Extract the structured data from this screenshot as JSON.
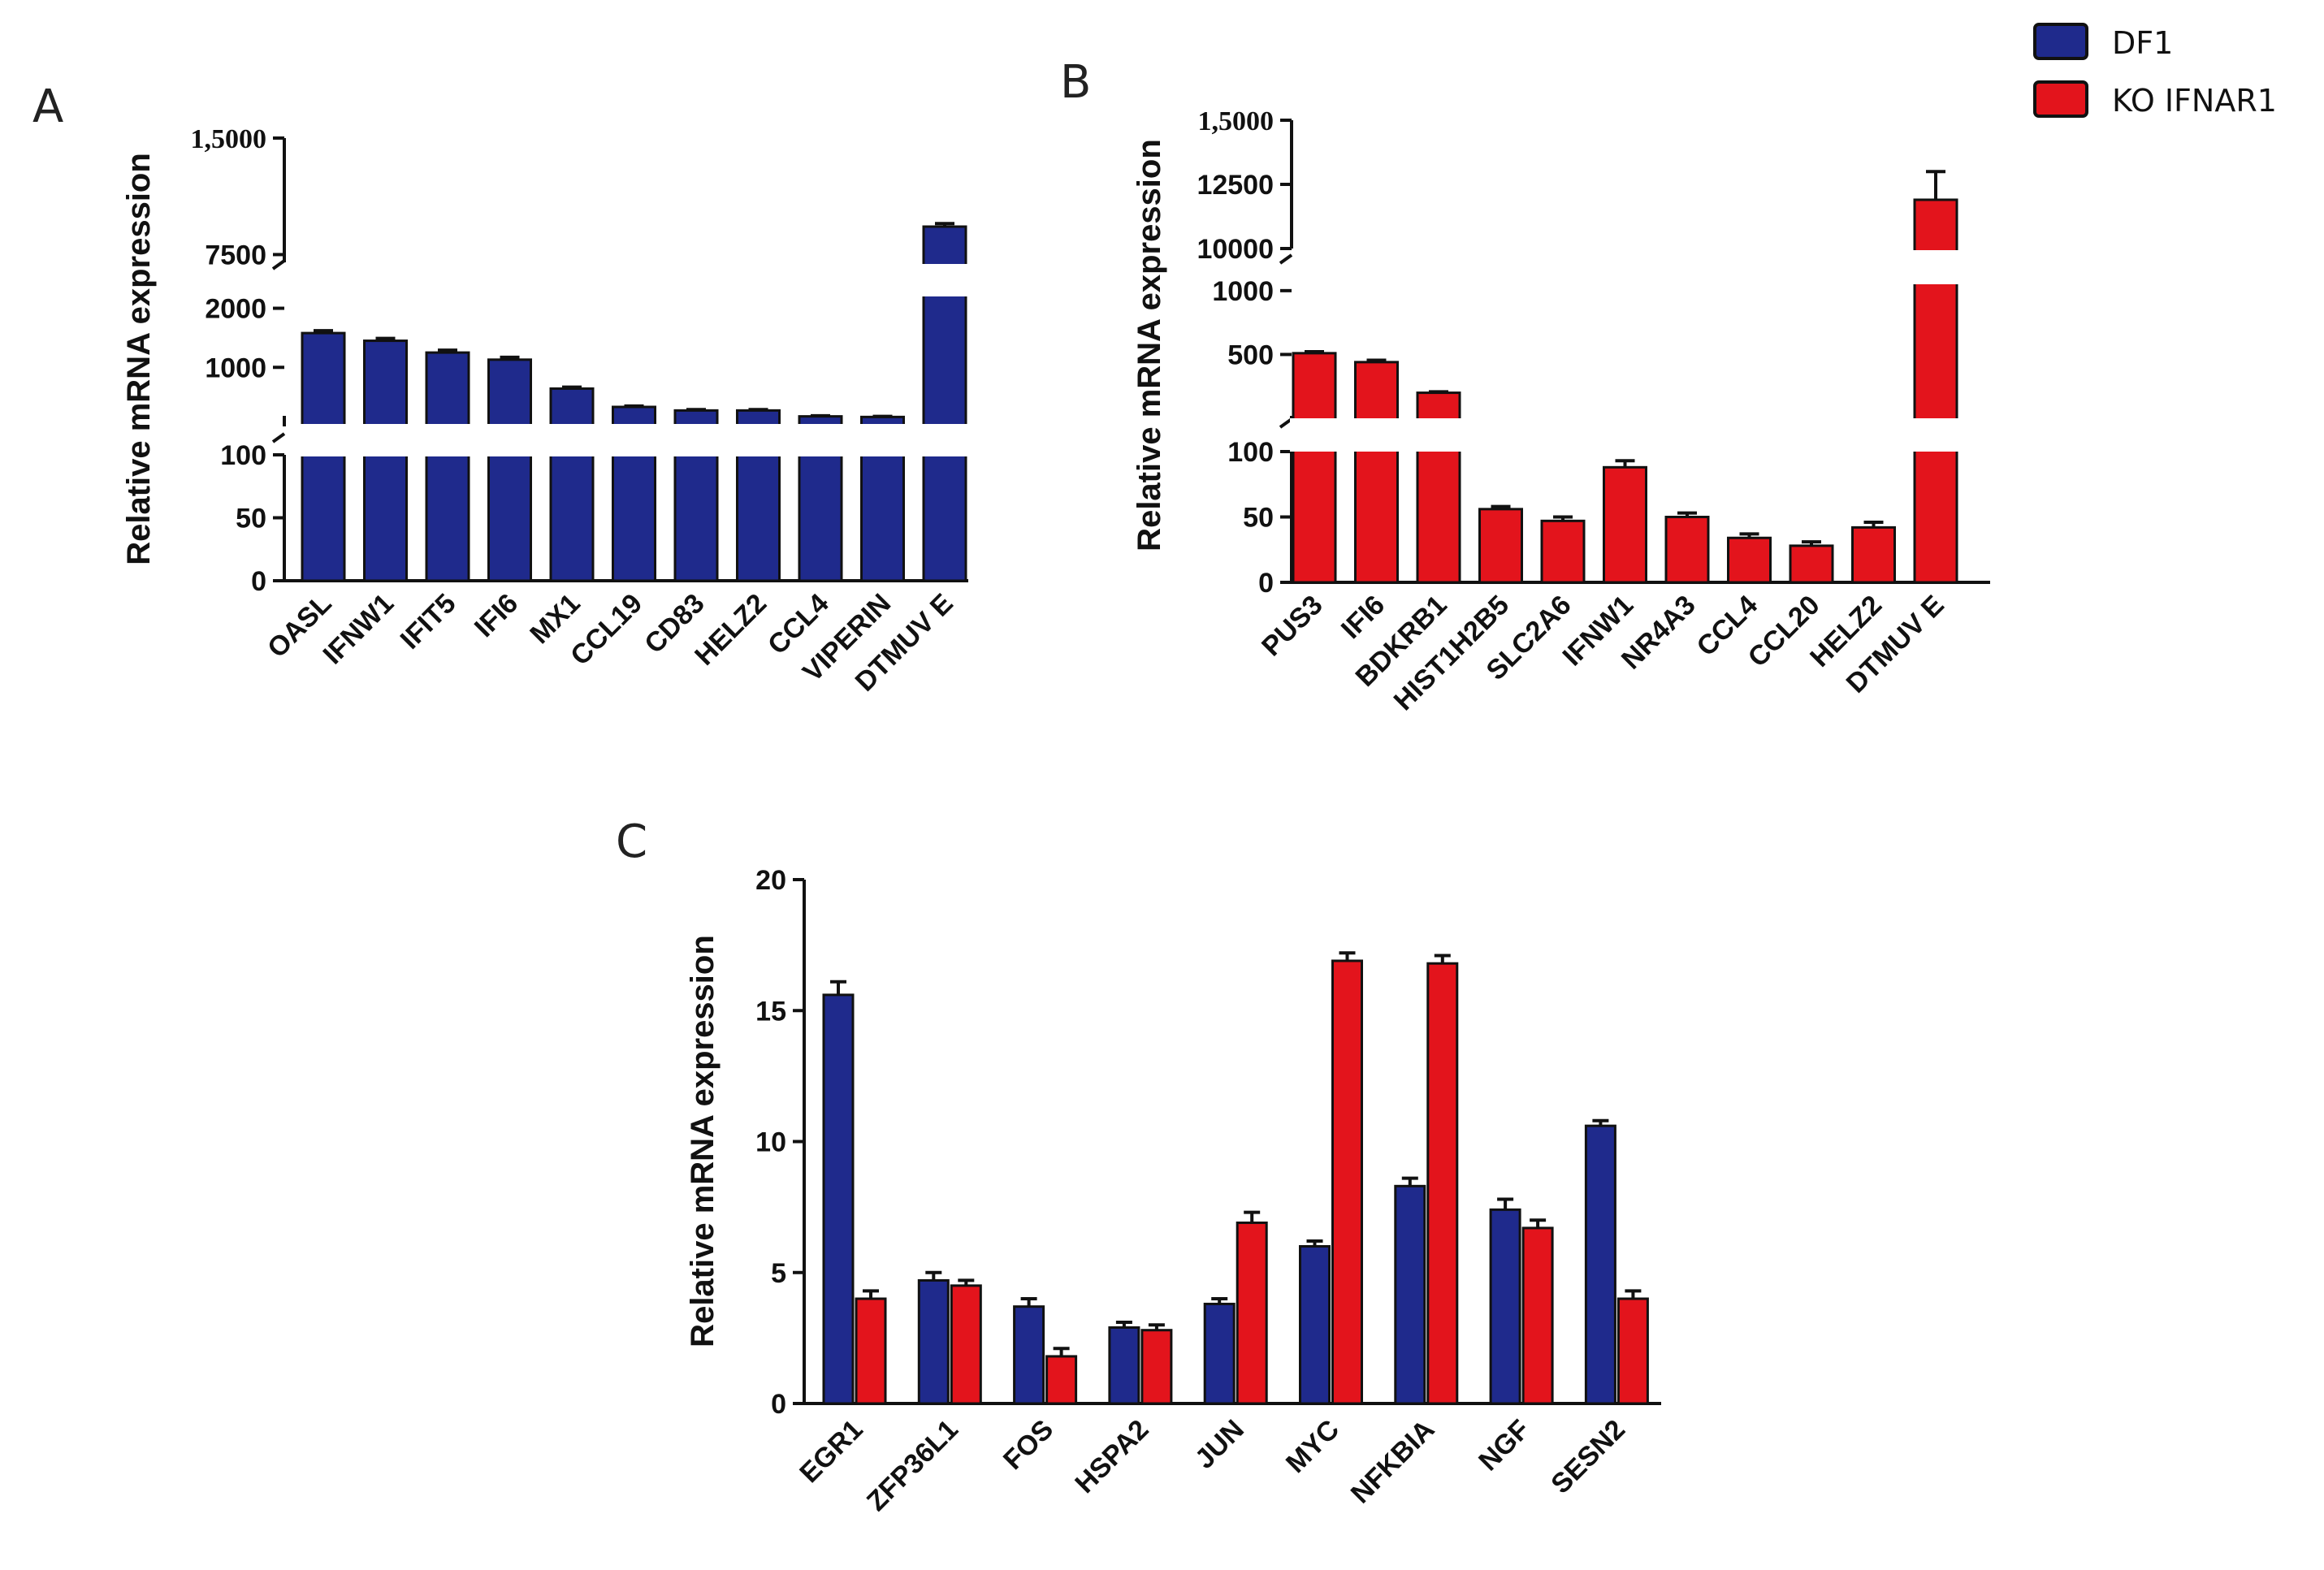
{
  "colors": {
    "df1": "#1f2a8c",
    "ko": "#e3141c",
    "axis": "#111111"
  },
  "legend": [
    {
      "label": "DF1",
      "color": "#1f2a8c"
    },
    {
      "label": "KO IFNAR1",
      "color": "#e3141c"
    }
  ],
  "chart_data": [
    {
      "panel": "A",
      "type": "bar",
      "ylabel": "Relative mRNA expression",
      "series_name": "DF1",
      "categories": [
        "OASL",
        "IFNW1",
        "IFIT5",
        "IFI6",
        "MX1",
        "CCL19",
        "CD83",
        "HELZ2",
        "CCL4",
        "VIPERIN",
        "DTMUV E"
      ],
      "values": [
        1580,
        1450,
        1250,
        1130,
        640,
        330,
        270,
        270,
        170,
        160,
        9300
      ],
      "errors": [
        40,
        40,
        40,
        40,
        25,
        15,
        15,
        15,
        10,
        10,
        200
      ],
      "broken_axis_segments": [
        {
          "range": [
            0,
            100
          ],
          "ticks": [
            "0",
            "50",
            "100"
          ]
        },
        {
          "range": [
            0,
            2200
          ],
          "ticks": [
            "1000",
            "2000"
          ]
        },
        {
          "range": [
            7000,
            15000
          ],
          "ticks": [
            "7500",
            "1,5000"
          ]
        }
      ]
    },
    {
      "panel": "B",
      "type": "bar",
      "ylabel": "Relative mRNA expression",
      "series_name": "KO IFNAR1",
      "categories": [
        "PUS3",
        "IFI6",
        "BDKRB1",
        "HIST1H2B5",
        "SLC2A6",
        "IFNW1",
        "NR4A3",
        "CCL4",
        "CCL20",
        "HELZ2",
        "DTMUV E"
      ],
      "values": [
        510,
        440,
        200,
        56,
        47,
        88,
        50,
        34,
        28,
        42,
        11900
      ],
      "errors": [
        12,
        15,
        8,
        2,
        3,
        5,
        3,
        3,
        3,
        4,
        1100
      ],
      "broken_axis_segments": [
        {
          "range": [
            0,
            100
          ],
          "ticks": [
            "0",
            "50",
            "100"
          ]
        },
        {
          "range": [
            0,
            1050
          ],
          "ticks": [
            "500",
            "1000"
          ]
        },
        {
          "range": [
            10000,
            15000
          ],
          "ticks": [
            "10000",
            "12500",
            "1,5000"
          ]
        }
      ]
    },
    {
      "panel": "C",
      "type": "bar",
      "ylabel": "Relative mRNA expression",
      "categories": [
        "EGR1",
        "ZFP36L1",
        "FOS",
        "HSPA2",
        "JUN",
        "MYC",
        "NFKBIA",
        "NGF",
        "SESN2"
      ],
      "ylim": [
        0,
        20
      ],
      "yticks": [
        "0",
        "5",
        "10",
        "15",
        "20"
      ],
      "series": [
        {
          "name": "DF1",
          "values": [
            15.6,
            4.7,
            3.7,
            2.9,
            3.8,
            6.0,
            8.3,
            7.4,
            10.6
          ],
          "errors": [
            0.5,
            0.3,
            0.3,
            0.2,
            0.2,
            0.2,
            0.3,
            0.4,
            0.2
          ]
        },
        {
          "name": "KO IFNAR1",
          "values": [
            4.0,
            4.5,
            1.8,
            2.8,
            6.9,
            16.9,
            16.8,
            6.7,
            4.0
          ],
          "errors": [
            0.3,
            0.2,
            0.3,
            0.2,
            0.4,
            0.3,
            0.3,
            0.3,
            0.3
          ]
        }
      ]
    }
  ]
}
